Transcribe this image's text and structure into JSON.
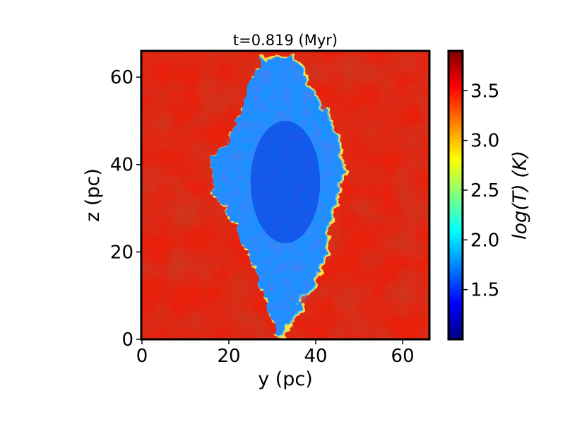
{
  "chart_data": {
    "type": "heatmap",
    "title": "t=0.819 (Myr)",
    "xlabel": "y (pc)",
    "ylabel": "z (pc)",
    "xlim": [
      0,
      66
    ],
    "ylim": [
      0,
      66
    ],
    "xticks": [
      0,
      20,
      40,
      60
    ],
    "yticks": [
      0,
      20,
      40,
      60
    ],
    "colorbar": {
      "label": "log(T) (K)",
      "range": [
        1.0,
        3.9
      ],
      "ticks": [
        1.5,
        2.0,
        2.5,
        3.0,
        3.5
      ],
      "colormap": "jet"
    },
    "field": {
      "description_values": {
        "background_logT": 3.6,
        "cloud_logT": 1.8,
        "cloud_core_logT": 1.3
      }
    }
  },
  "colors": {
    "hot": "#e8200c",
    "hot_dark": "#c80e08",
    "cloud": "#1a90ff",
    "cloud_edge": "#30d8ff",
    "core": "#0a3fe0",
    "frame": "#000000"
  }
}
